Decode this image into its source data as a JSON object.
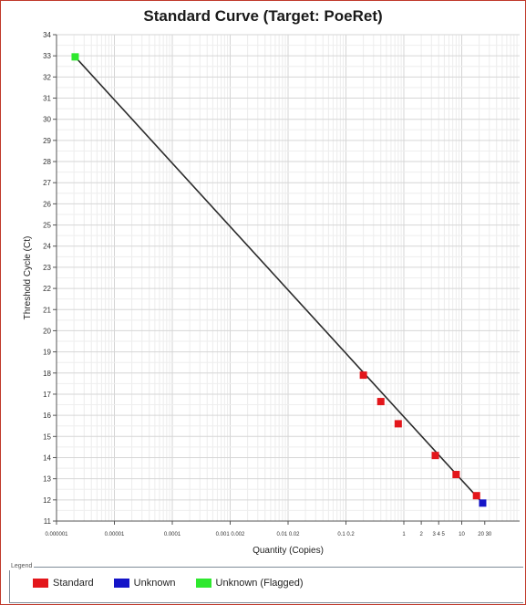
{
  "chart_data": {
    "type": "scatter",
    "title": "Standard Curve (Target: PoeRet)",
    "xlabel": "Quantity (Copies)",
    "ylabel": "Threshold Cycle (Ct)",
    "x_scale": "log",
    "xlim": [
      1e-06,
      100
    ],
    "ylim": [
      11,
      34
    ],
    "y_ticks": [
      11,
      12,
      13,
      14,
      15,
      16,
      17,
      18,
      19,
      20,
      21,
      22,
      23,
      24,
      25,
      26,
      27,
      28,
      29,
      30,
      31,
      32,
      33,
      34
    ],
    "x_ticks": [
      {
        "value": 1e-06,
        "label": "0.000001"
      },
      {
        "value": 1e-05,
        "label": "0.00001"
      },
      {
        "value": 0.0001,
        "label": "0.0001"
      },
      {
        "value": 0.001,
        "label": "0.001 0.002"
      },
      {
        "value": 0.01,
        "label": "0.01 0.02"
      },
      {
        "value": 0.1,
        "label": "0.1 0.2"
      },
      {
        "value": 1,
        "label": "1"
      },
      {
        "value": 2,
        "label": "2"
      },
      {
        "value": 4,
        "label": "3 4 5"
      },
      {
        "value": 10,
        "label": "10"
      },
      {
        "value": 25,
        "label": "20 30"
      }
    ],
    "grid": true,
    "legend_position": "bottom",
    "legend_title": "Legend",
    "series": [
      {
        "name": "Standard",
        "color": "#e3161b",
        "points": [
          {
            "x": 0.2,
            "y": 17.9
          },
          {
            "x": 0.4,
            "y": 16.65
          },
          {
            "x": 0.8,
            "y": 15.6
          },
          {
            "x": 3.5,
            "y": 14.1
          },
          {
            "x": 8,
            "y": 13.2
          },
          {
            "x": 18,
            "y": 12.2
          }
        ]
      },
      {
        "name": "Unknown",
        "color": "#1414c8",
        "points": [
          {
            "x": 23,
            "y": 11.85
          }
        ]
      },
      {
        "name": "Unknown (Flagged)",
        "color": "#2ee82e",
        "points": [
          {
            "x": 2.1e-06,
            "y": 32.95
          }
        ]
      }
    ],
    "fit_line": {
      "x": [
        2.1e-06,
        23
      ],
      "y": [
        32.95,
        11.85
      ],
      "color": "#2b2b2b"
    }
  }
}
